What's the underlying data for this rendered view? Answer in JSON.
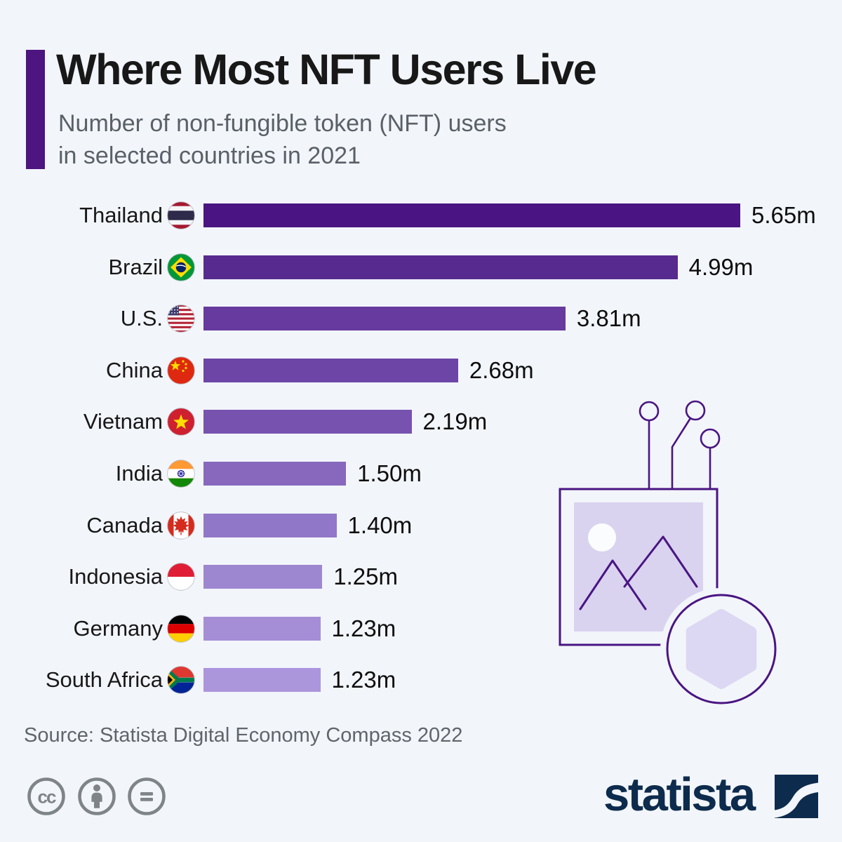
{
  "header": {
    "title": "Where Most NFT Users Live",
    "subtitle_line1": "Number of non-fungible token (NFT) users",
    "subtitle_line2": "in selected countries in 2021"
  },
  "chart_data": {
    "type": "bar",
    "orientation": "horizontal",
    "title": "Where Most NFT Users Live",
    "subtitle": "Number of non-fungible token (NFT) users in selected countries in 2021",
    "categories": [
      "Thailand",
      "Brazil",
      "U.S.",
      "China",
      "Vietnam",
      "India",
      "Canada",
      "Indonesia",
      "Germany",
      "South Africa"
    ],
    "values": [
      5.65,
      4.99,
      3.81,
      2.68,
      2.19,
      1.5,
      1.4,
      1.25,
      1.23,
      1.23
    ],
    "value_labels": [
      "5.65m",
      "4.99m",
      "3.81m",
      "2.68m",
      "2.19m",
      "1.50m",
      "1.40m",
      "1.25m",
      "1.23m",
      "1.23m"
    ],
    "flags": [
      "thailand",
      "brazil",
      "us",
      "china",
      "vietnam",
      "india",
      "canada",
      "indonesia",
      "germany",
      "south-africa"
    ],
    "bar_colors": [
      "#4a1582",
      "#572a8f",
      "#663a9e",
      "#6d45a6",
      "#7752af",
      "#8768bd",
      "#9177c7",
      "#9d87d0",
      "#a58ed6",
      "#ab96dc"
    ],
    "xlim": [
      0,
      5.65
    ],
    "grid": false,
    "legend": false
  },
  "footer": {
    "source": "Source: Statista Digital Economy Compass 2022",
    "brand_wordmark": "statista",
    "license_icons": [
      "cc-icon",
      "cc-attribution-icon",
      "cc-equals-icon"
    ]
  },
  "colors": {
    "background": "#f2f5fa",
    "accent": "#4d1580",
    "title_text": "#181818",
    "subtitle_text": "#5a6067",
    "source_text": "#60656c",
    "cc_gray": "#7e8487",
    "brand_navy": "#0d2b4c",
    "illustration_stroke": "#4a1582",
    "illustration_fill": "#d9d3ef",
    "illustration_hex_fill": "#dcd7f2"
  }
}
